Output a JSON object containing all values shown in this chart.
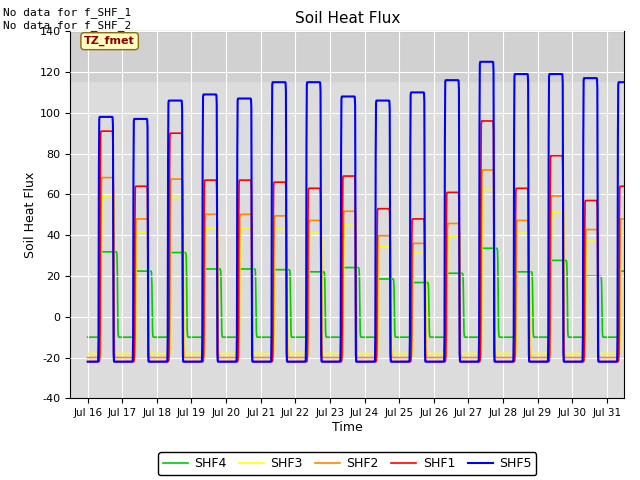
{
  "title": "Soil Heat Flux",
  "xlabel": "Time",
  "ylabel": "Soil Heat Flux",
  "ylim": [
    -40,
    140
  ],
  "xlim_days": [
    15.5,
    31.5
  ],
  "xtick_labels": [
    "Jul 16",
    "Jul 17",
    "Jul 18",
    "Jul 19",
    "Jul 20",
    "Jul 21",
    "Jul 22",
    "Jul 23",
    "Jul 24",
    "Jul 25",
    "Jul 26",
    "Jul 27",
    "Jul 28",
    "Jul 29",
    "Jul 30",
    "Jul 31"
  ],
  "xtick_positions": [
    16,
    17,
    18,
    19,
    20,
    21,
    22,
    23,
    24,
    25,
    26,
    27,
    28,
    29,
    30,
    31
  ],
  "ytick_positions": [
    -40,
    -20,
    0,
    20,
    40,
    60,
    80,
    100,
    120,
    140
  ],
  "annotation1": "No data for f_SHF_1",
  "annotation2": "No data for f_SHF_2",
  "tz_label": "TZ_fmet",
  "legend_labels": [
    "SHF1",
    "SHF2",
    "SHF3",
    "SHF4",
    "SHF5"
  ],
  "legend_colors": [
    "#ff0000",
    "#ff8800",
    "#ffff00",
    "#00cc00",
    "#0000ff"
  ],
  "line_widths": [
    1.2,
    1.2,
    1.2,
    1.2,
    1.5
  ],
  "background_color": "#dcdcdc",
  "fig_background": "#ffffff",
  "shf_band_y": 115,
  "shf_band_color": "#c8c8c8",
  "peaks_shf1": [
    91,
    64,
    90,
    67,
    67,
    66,
    63,
    69,
    53,
    48,
    61,
    96,
    63,
    79,
    57,
    64
  ],
  "peaks_shf5": [
    98,
    97,
    106,
    109,
    107,
    115,
    115,
    108,
    106,
    110,
    116,
    125,
    119,
    119,
    117,
    115
  ],
  "night_shf1": -22,
  "night_shf5": -22,
  "night_shf4": -10,
  "day_hours": 10,
  "samples_per_day": 96
}
